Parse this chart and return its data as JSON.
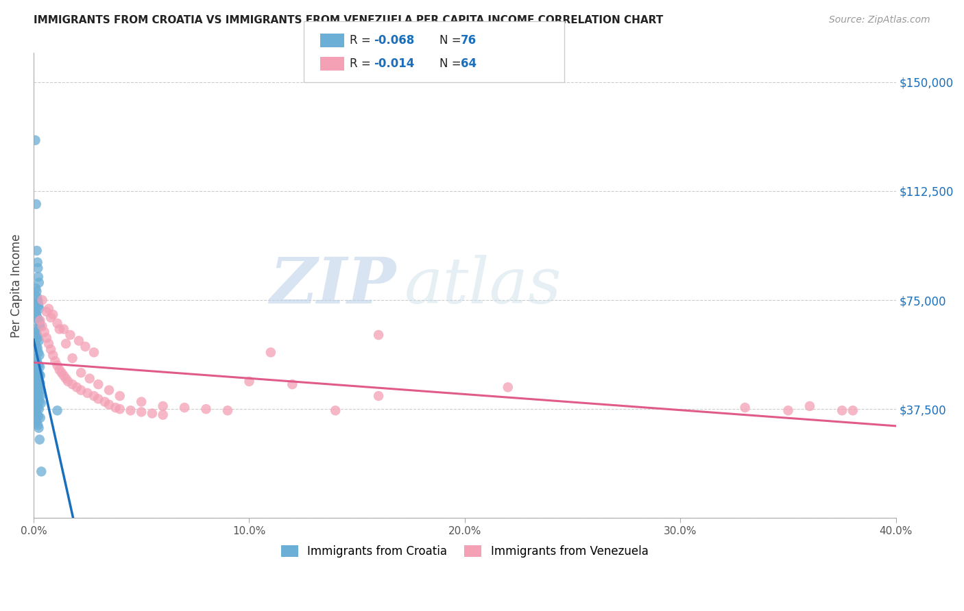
{
  "title": "IMMIGRANTS FROM CROATIA VS IMMIGRANTS FROM VENEZUELA PER CAPITA INCOME CORRELATION CHART",
  "source": "Source: ZipAtlas.com",
  "ylabel": "Per Capita Income",
  "y_ticks": [
    0,
    37500,
    75000,
    112500,
    150000
  ],
  "y_tick_labels": [
    "",
    "$37,500",
    "$75,000",
    "$112,500",
    "$150,000"
  ],
  "x_lim": [
    0,
    0.4
  ],
  "y_lim": [
    0,
    160000
  ],
  "legend_r1": "-0.068",
  "legend_n1": "76",
  "legend_r2": "-0.014",
  "legend_n2": "64",
  "color_croatia": "#6baed6",
  "color_venezuela": "#f4a0b5",
  "color_blue": "#1a6fbd",
  "color_pink": "#e05a8a",
  "watermark_zip": "ZIP",
  "watermark_atlas": "atlas",
  "croatia_x": [
    0.0008,
    0.0012,
    0.0015,
    0.0018,
    0.002,
    0.0022,
    0.0025,
    0.001,
    0.0014,
    0.0016,
    0.0019,
    0.0021,
    0.0023,
    0.0026,
    0.0009,
    0.0013,
    0.0017,
    0.0024,
    0.0028,
    0.003,
    0.0007,
    0.0011,
    0.0016,
    0.002,
    0.0025,
    0.0008,
    0.0013,
    0.0018,
    0.0022,
    0.0027,
    0.001,
    0.0015,
    0.0019,
    0.0023,
    0.0029,
    0.0012,
    0.0017,
    0.0021,
    0.0026,
    0.0031,
    0.0009,
    0.0014,
    0.002,
    0.0024,
    0.003,
    0.0011,
    0.0016,
    0.0022,
    0.0028,
    0.0033,
    0.0008,
    0.0013,
    0.0018,
    0.0023,
    0.0032,
    0.001,
    0.0015,
    0.0021,
    0.0027,
    0.0035,
    0.0009,
    0.0014,
    0.0019,
    0.0025,
    0.011,
    0.0007,
    0.0012,
    0.0017,
    0.0022,
    0.0031,
    0.0008,
    0.0013,
    0.002,
    0.0024,
    0.0028,
    0.0036
  ],
  "croatia_y": [
    130000,
    108000,
    92000,
    88000,
    86000,
    83000,
    81000,
    79000,
    78000,
    76000,
    75000,
    74000,
    73000,
    72000,
    71000,
    70000,
    69000,
    68000,
    67000,
    66000,
    65000,
    64000,
    63000,
    62000,
    61000,
    60000,
    59000,
    58500,
    57000,
    56000,
    55000,
    54000,
    53000,
    52500,
    52000,
    51000,
    50500,
    50000,
    49500,
    49000,
    48500,
    48000,
    47500,
    47000,
    46500,
    46000,
    45500,
    45000,
    44500,
    44000,
    43500,
    43000,
    42500,
    42000,
    42000,
    41500,
    41000,
    40500,
    40000,
    39500,
    39000,
    38500,
    38000,
    37500,
    37000,
    36500,
    36000,
    35500,
    35000,
    34500,
    34000,
    33000,
    32000,
    31000,
    27000,
    16000
  ],
  "venezuela_x": [
    0.003,
    0.004,
    0.005,
    0.006,
    0.007,
    0.008,
    0.009,
    0.01,
    0.011,
    0.012,
    0.013,
    0.014,
    0.015,
    0.016,
    0.018,
    0.02,
    0.022,
    0.025,
    0.028,
    0.03,
    0.033,
    0.035,
    0.038,
    0.04,
    0.045,
    0.05,
    0.055,
    0.06,
    0.007,
    0.009,
    0.012,
    0.015,
    0.018,
    0.022,
    0.026,
    0.03,
    0.035,
    0.04,
    0.05,
    0.06,
    0.07,
    0.08,
    0.09,
    0.1,
    0.11,
    0.12,
    0.14,
    0.16,
    0.004,
    0.006,
    0.008,
    0.011,
    0.014,
    0.017,
    0.021,
    0.024,
    0.028,
    0.16,
    0.22,
    0.33,
    0.35,
    0.36,
    0.375,
    0.38
  ],
  "venezuela_y": [
    68000,
    66000,
    64000,
    62000,
    60000,
    58000,
    56000,
    54000,
    52500,
    51000,
    50000,
    49000,
    48000,
    47000,
    46000,
    45000,
    44000,
    43000,
    42000,
    41000,
    40000,
    39000,
    38000,
    37500,
    37000,
    36500,
    36000,
    35500,
    72000,
    70000,
    65000,
    60000,
    55000,
    50000,
    48000,
    46000,
    44000,
    42000,
    40000,
    38500,
    38000,
    37500,
    37000,
    47000,
    57000,
    46000,
    37000,
    63000,
    75000,
    71000,
    69000,
    67000,
    65000,
    63000,
    61000,
    59000,
    57000,
    42000,
    45000,
    38000,
    37000,
    38500,
    37000,
    37000
  ]
}
